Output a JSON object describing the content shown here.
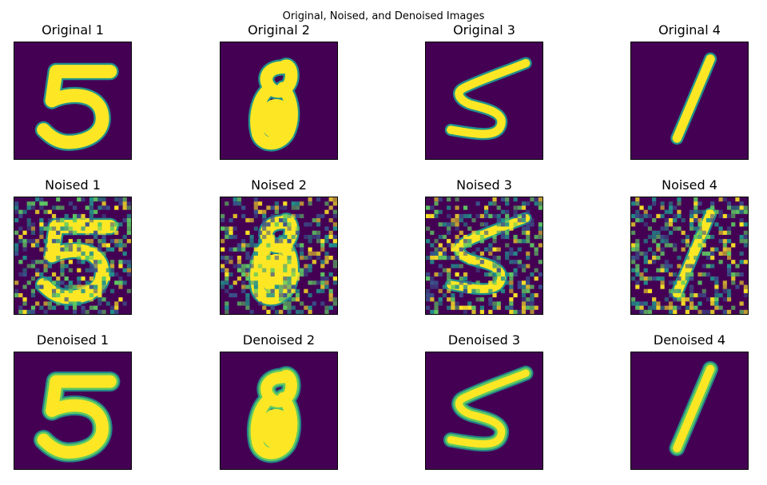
{
  "figure": {
    "suptitle": "Original, Noised, and Denoised Images",
    "colormap": {
      "background": "#440154",
      "low": "#3b528b",
      "mid": "#21918c",
      "high": "#5ec962",
      "peak": "#fde725"
    },
    "rows": [
      {
        "kind": "original",
        "panels": [
          {
            "title": "Original 1",
            "digit": "5"
          },
          {
            "title": "Original 2",
            "digit": "8"
          },
          {
            "title": "Original 3",
            "digit": "5"
          },
          {
            "title": "Original 4",
            "digit": "1"
          }
        ]
      },
      {
        "kind": "noised",
        "panels": [
          {
            "title": "Noised 1",
            "digit": "5"
          },
          {
            "title": "Noised 2",
            "digit": "8"
          },
          {
            "title": "Noised 3",
            "digit": "5"
          },
          {
            "title": "Noised 4",
            "digit": "1"
          }
        ]
      },
      {
        "kind": "denoised",
        "panels": [
          {
            "title": "Denoised 1",
            "digit": "5"
          },
          {
            "title": "Denoised 2",
            "digit": "8"
          },
          {
            "title": "Denoised 3",
            "digit": "5"
          },
          {
            "title": "Denoised 4",
            "digit": "1"
          }
        ]
      }
    ]
  }
}
